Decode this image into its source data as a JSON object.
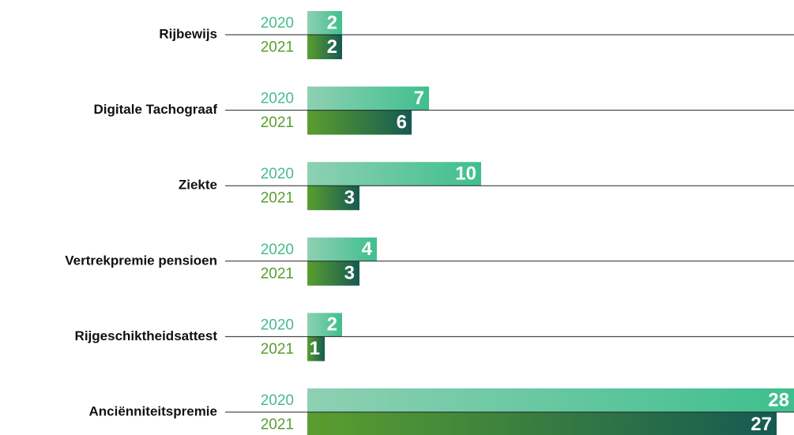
{
  "chart_data": {
    "type": "bar",
    "orientation": "horizontal",
    "categories": [
      "Rijbewijs",
      "Digitale Tachograaf",
      "Ziekte",
      "Vertrekpremie pensioen",
      "Rijgeschiktheidsattest",
      "Anciënniteitspremie"
    ],
    "series": [
      {
        "name": "2020",
        "color": "#47bb8c",
        "values": [
          2,
          7,
          10,
          4,
          2,
          28
        ]
      },
      {
        "name": "2021",
        "color": "#5a9e2f",
        "values": [
          2,
          6,
          3,
          3,
          1,
          27
        ]
      }
    ],
    "xlim": [
      0,
      28
    ]
  }
}
